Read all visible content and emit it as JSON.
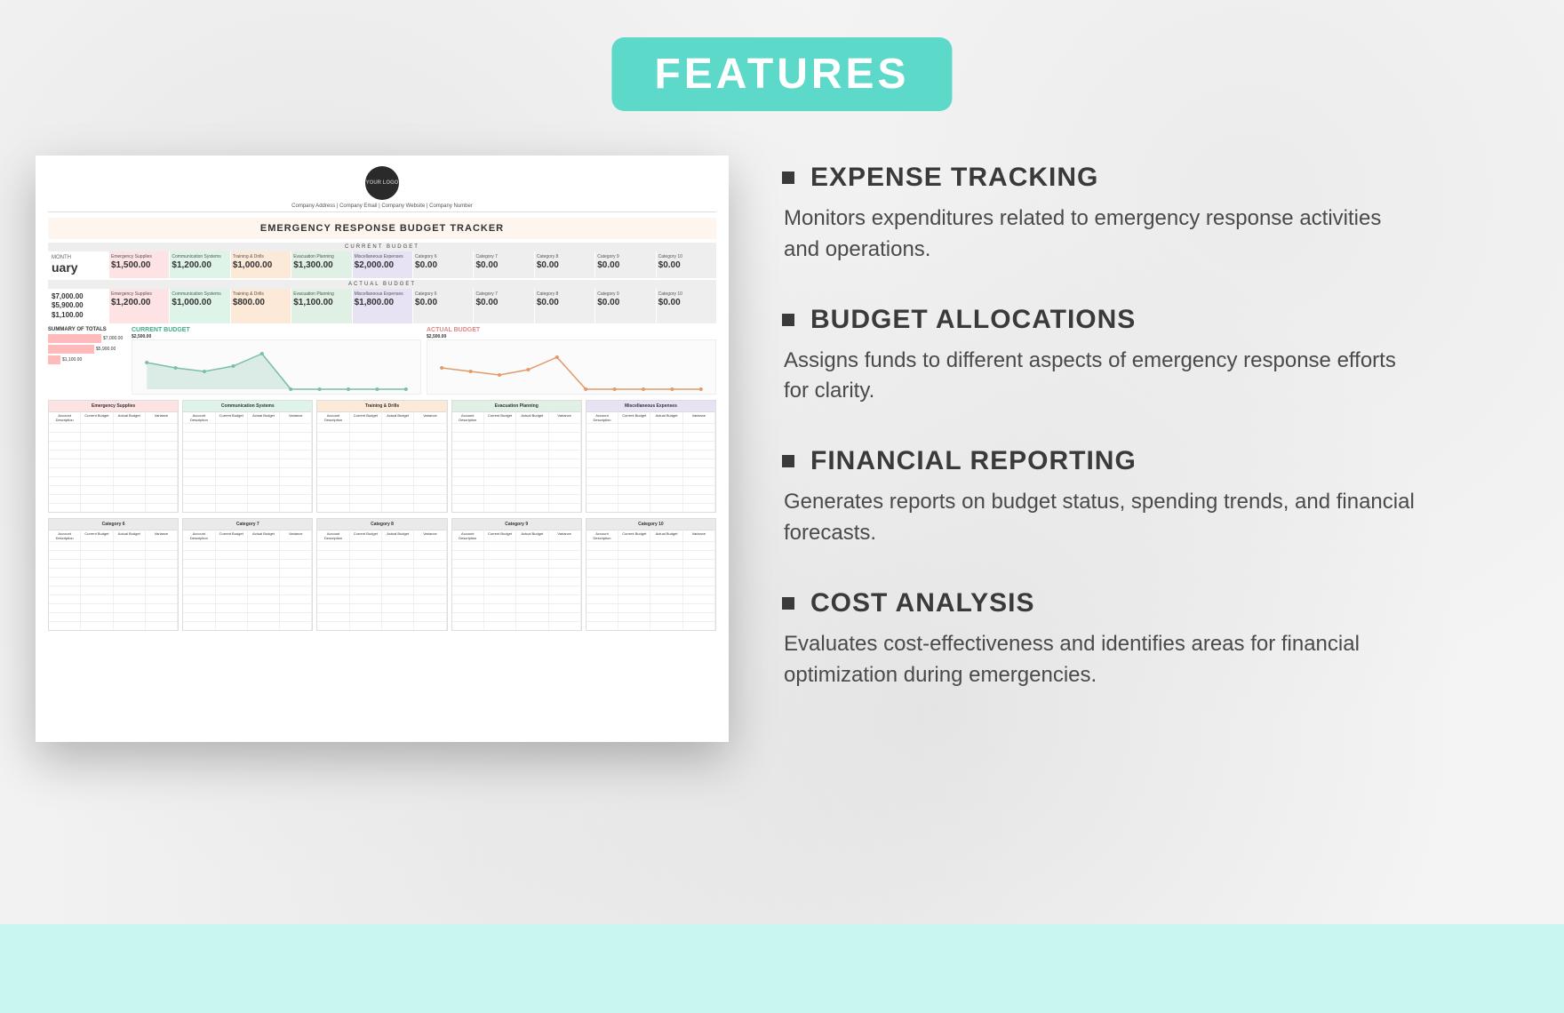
{
  "badge": "FEATURES",
  "features": [
    {
      "title": "EXPENSE TRACKING",
      "desc": "Monitors expenditures related to emergency response activities and operations."
    },
    {
      "title": "BUDGET ALLOCATIONS",
      "desc": "Assigns funds to different aspects of emergency response efforts for clarity."
    },
    {
      "title": "FINANCIAL REPORTING",
      "desc": "Generates reports on budget status, spending trends, and financial forecasts."
    },
    {
      "title": "COST ANALYSIS",
      "desc": "Evaluates cost-effectiveness and identifies areas for financial optimization during emergencies."
    }
  ],
  "colors": {
    "badge_bg": "#5dd9c9",
    "badge_text": "#ffffff",
    "title_text": "#3a3a3a",
    "body_text": "#4a4a4a",
    "bottom_band": "#c8f7ef",
    "page_bg": "#f4f4f4"
  },
  "preview": {
    "logo_text": "YOUR\nLOGO",
    "company_line": "Company Address  |  Company Email  |  Company Website  |  Company Number",
    "doc_title": "EMERGENCY RESPONSE BUDGET TRACKER",
    "section_current": "CURRENT BUDGET",
    "section_actual": "ACTUAL BUDGET",
    "month_label": "MONTH",
    "month_value": "uary",
    "totals": {
      "t1": "$7,000.00",
      "t2": "$5,900.00",
      "t3": "$1,100.00"
    },
    "current_row": [
      {
        "h": "Emergency Supplies",
        "v": "$1,500.00",
        "bg": "#fde3e3"
      },
      {
        "h": "Communication Systems",
        "v": "$1,200.00",
        "bg": "#dff4e8"
      },
      {
        "h": "Training & Drills",
        "v": "$1,000.00",
        "bg": "#fde9d8"
      },
      {
        "h": "Evacuation Planning",
        "v": "$1,300.00",
        "bg": "#e0f0e4"
      },
      {
        "h": "Miscellaneous Expenses",
        "v": "$2,000.00",
        "bg": "#e8e2f5"
      },
      {
        "h": "Category 6",
        "v": "$0.00",
        "bg": "#eeeeee"
      },
      {
        "h": "Category 7",
        "v": "$0.00",
        "bg": "#eeeeee"
      },
      {
        "h": "Category 8",
        "v": "$0.00",
        "bg": "#eeeeee"
      },
      {
        "h": "Category 9",
        "v": "$0.00",
        "bg": "#eeeeee"
      },
      {
        "h": "Category 10",
        "v": "$0.00",
        "bg": "#eeeeee"
      }
    ],
    "actual_row": [
      {
        "h": "Emergency Supplies",
        "v": "$1,200.00",
        "bg": "#fde3e3"
      },
      {
        "h": "Communication Systems",
        "v": "$1,000.00",
        "bg": "#dff4e8"
      },
      {
        "h": "Training & Drills",
        "v": "$800.00",
        "bg": "#fde9d8"
      },
      {
        "h": "Evacuation Planning",
        "v": "$1,100.00",
        "bg": "#e0f0e4"
      },
      {
        "h": "Miscellaneous Expenses",
        "v": "$1,800.00",
        "bg": "#e8e2f5"
      },
      {
        "h": "Category 6",
        "v": "$0.00",
        "bg": "#eeeeee"
      },
      {
        "h": "Category 7",
        "v": "$0.00",
        "bg": "#eeeeee"
      },
      {
        "h": "Category 8",
        "v": "$0.00",
        "bg": "#eeeeee"
      },
      {
        "h": "Category 9",
        "v": "$0.00",
        "bg": "#eeeeee"
      },
      {
        "h": "Category 10",
        "v": "$0.00",
        "bg": "#eeeeee"
      }
    ],
    "summary_title": "SUMMARY OF TOTALS",
    "summary": [
      {
        "label": "$7,000.00",
        "w": 60,
        "color": "#fbb"
      },
      {
        "label": "$5,900.00",
        "w": 52,
        "color": "#fbb"
      },
      {
        "label": "$1,100.00",
        "w": 14,
        "color": "#fbb"
      }
    ],
    "chart_current_title": "CURRENT BUDGET",
    "chart_current_max": "$2,500.00",
    "chart_actual_title": "ACTUAL BUDGET",
    "chart_actual_max": "$2,500.00",
    "chart_categories": [
      "Emergency Supplies",
      "Communication Systems",
      "Training & Drills",
      "Evacuation Planning",
      "Miscellaneous Expenses",
      "Category 6",
      "Category 7",
      "Category 8",
      "Category 9",
      "Category 10"
    ],
    "chart_current_values": [
      1500,
      1200,
      1000,
      1300,
      2000,
      0,
      0,
      0,
      0,
      0
    ],
    "chart_actual_values": [
      1200,
      1000,
      800,
      1100,
      1800,
      0,
      0,
      0,
      0,
      0
    ],
    "table_headers": [
      "Emergency Supplies",
      "Communication Systems",
      "Training & Drills",
      "Evacuation Planning",
      "Miscellaneous Expenses"
    ],
    "table_header2": [
      "Category 6",
      "Category 7",
      "Category 8",
      "Category 9",
      "Category 10"
    ],
    "table_colors": [
      "#fde3e3",
      "#dff4e8",
      "#fde9d8",
      "#e0f0e4",
      "#e8e2f5"
    ],
    "table_colors2": [
      "#eaeaea",
      "#eaeaea",
      "#eaeaea",
      "#eaeaea",
      "#eaeaea"
    ],
    "table_sub": [
      "Account Description",
      "Current Budget",
      "Actual Budget",
      "Variance"
    ]
  }
}
